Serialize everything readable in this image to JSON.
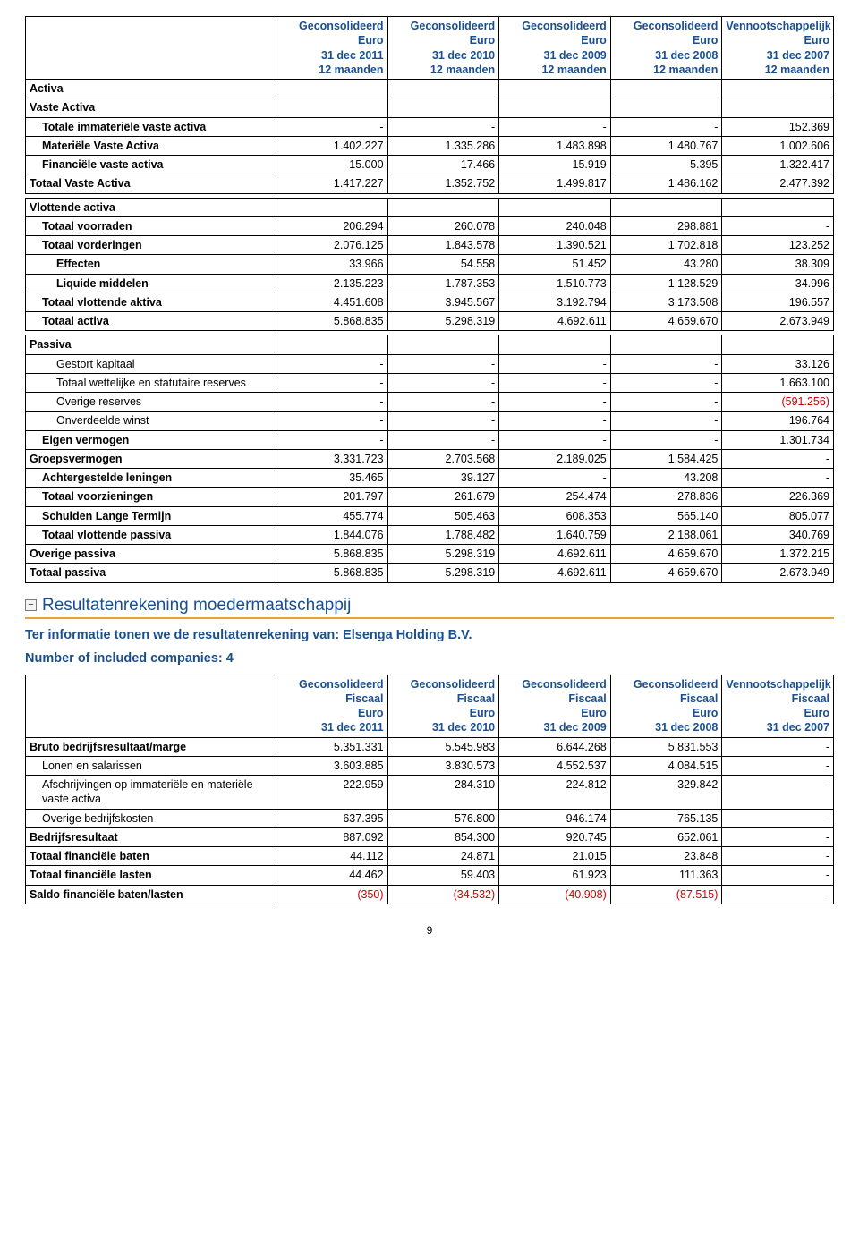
{
  "colors": {
    "heading": "#1a4f8f",
    "rule": "#f0a030",
    "negative": "#d00000",
    "border": "#000000",
    "bg": "#ffffff"
  },
  "balance": {
    "header": [
      [
        "Geconsolideerd",
        "Euro",
        "31 dec 2011",
        "12 maanden"
      ],
      [
        "Geconsolideerd",
        "Euro",
        "31 dec 2010",
        "12 maanden"
      ],
      [
        "Geconsolideerd",
        "Euro",
        "31 dec 2009",
        "12 maanden"
      ],
      [
        "Geconsolideerd",
        "Euro",
        "31 dec 2008",
        "12 maanden"
      ],
      [
        "Vennootschappelijk",
        "Euro",
        "31 dec 2007",
        "12 maanden"
      ]
    ],
    "rows": [
      {
        "label": "Activa",
        "bold": true,
        "indent": 0,
        "vals": [
          "",
          "",
          "",
          "",
          ""
        ]
      },
      {
        "label": "Vaste Activa",
        "bold": true,
        "indent": 0,
        "vals": [
          "",
          "",
          "",
          "",
          ""
        ]
      },
      {
        "label": "Totale immateriële vaste activa",
        "bold": true,
        "indent": 1,
        "vals": [
          "-",
          "-",
          "-",
          "-",
          "152.369"
        ]
      },
      {
        "label": "Materiële Vaste Activa",
        "bold": true,
        "indent": 1,
        "vals": [
          "1.402.227",
          "1.335.286",
          "1.483.898",
          "1.480.767",
          "1.002.606"
        ]
      },
      {
        "label": "Financiële vaste activa",
        "bold": true,
        "indent": 1,
        "vals": [
          "15.000",
          "17.466",
          "15.919",
          "5.395",
          "1.322.417"
        ]
      },
      {
        "label": "Totaal Vaste Activa",
        "bold": true,
        "indent": 0,
        "vals": [
          "1.417.227",
          "1.352.752",
          "1.499.817",
          "1.486.162",
          "2.477.392"
        ]
      },
      {
        "spacer": true
      },
      {
        "label": "Vlottende activa",
        "bold": true,
        "indent": 0,
        "vals": [
          "",
          "",
          "",
          "",
          ""
        ]
      },
      {
        "label": "Totaal voorraden",
        "bold": true,
        "indent": 1,
        "vals": [
          "206.294",
          "260.078",
          "240.048",
          "298.881",
          "-"
        ]
      },
      {
        "label": "Totaal vorderingen",
        "bold": true,
        "indent": 1,
        "vals": [
          "2.076.125",
          "1.843.578",
          "1.390.521",
          "1.702.818",
          "123.252"
        ]
      },
      {
        "label": "Effecten",
        "bold": true,
        "indent": 2,
        "vals": [
          "33.966",
          "54.558",
          "51.452",
          "43.280",
          "38.309"
        ]
      },
      {
        "label": "Liquide middelen",
        "bold": true,
        "indent": 2,
        "vals": [
          "2.135.223",
          "1.787.353",
          "1.510.773",
          "1.128.529",
          "34.996"
        ]
      },
      {
        "label": "Totaal vlottende aktiva",
        "bold": true,
        "indent": 1,
        "vals": [
          "4.451.608",
          "3.945.567",
          "3.192.794",
          "3.173.508",
          "196.557"
        ]
      },
      {
        "label": "Totaal activa",
        "bold": true,
        "indent": 1,
        "vals": [
          "5.868.835",
          "5.298.319",
          "4.692.611",
          "4.659.670",
          "2.673.949"
        ]
      },
      {
        "spacer": true
      },
      {
        "label": "Passiva",
        "bold": true,
        "indent": 0,
        "vals": [
          "",
          "",
          "",
          "",
          ""
        ]
      },
      {
        "label": "Gestort kapitaal",
        "bold": false,
        "indent": 2,
        "vals": [
          "-",
          "-",
          "-",
          "-",
          "33.126"
        ]
      },
      {
        "label": "Totaal wettelijke en statutaire reserves",
        "bold": false,
        "indent": 2,
        "vals": [
          "-",
          "-",
          "-",
          "-",
          "1.663.100"
        ]
      },
      {
        "label": "Overige reserves",
        "bold": false,
        "indent": 2,
        "vals": [
          "-",
          "-",
          "-",
          "-",
          "(591.256)"
        ],
        "neg": [
          false,
          false,
          false,
          false,
          true
        ]
      },
      {
        "label": "Onverdeelde winst",
        "bold": false,
        "indent": 2,
        "vals": [
          "-",
          "-",
          "-",
          "-",
          "196.764"
        ]
      },
      {
        "label": "Eigen vermogen",
        "bold": true,
        "indent": 1,
        "vals": [
          "-",
          "-",
          "-",
          "-",
          "1.301.734"
        ]
      },
      {
        "label": "Groepsvermogen",
        "bold": true,
        "indent": 0,
        "vals": [
          "3.331.723",
          "2.703.568",
          "2.189.025",
          "1.584.425",
          "-"
        ]
      },
      {
        "label": "Achtergestelde leningen",
        "bold": true,
        "indent": 1,
        "vals": [
          "35.465",
          "39.127",
          "-",
          "43.208",
          "-"
        ]
      },
      {
        "label": "Totaal voorzieningen",
        "bold": true,
        "indent": 1,
        "vals": [
          "201.797",
          "261.679",
          "254.474",
          "278.836",
          "226.369"
        ]
      },
      {
        "label": "Schulden Lange Termijn",
        "bold": true,
        "indent": 1,
        "vals": [
          "455.774",
          "505.463",
          "608.353",
          "565.140",
          "805.077"
        ]
      },
      {
        "label": "Totaal vlottende passiva",
        "bold": true,
        "indent": 1,
        "vals": [
          "1.844.076",
          "1.788.482",
          "1.640.759",
          "2.188.061",
          "340.769"
        ]
      },
      {
        "label": "Overige passiva",
        "bold": true,
        "indent": 0,
        "vals": [
          "5.868.835",
          "5.298.319",
          "4.692.611",
          "4.659.670",
          "1.372.215"
        ]
      },
      {
        "label": "Totaal passiva",
        "bold": true,
        "indent": 0,
        "vals": [
          "5.868.835",
          "5.298.319",
          "4.692.611",
          "4.659.670",
          "2.673.949"
        ]
      }
    ]
  },
  "section2": {
    "title": "Resultatenrekening moedermaatschappij",
    "line1": "Ter informatie tonen we de resultatenrekening van: Elsenga Holding B.V.",
    "line2": "Number of included companies: 4"
  },
  "income": {
    "header": [
      [
        "Geconsolideerd",
        "Fiscaal",
        "Euro",
        "31 dec 2011"
      ],
      [
        "Geconsolideerd",
        "Fiscaal",
        "Euro",
        "31 dec 2010"
      ],
      [
        "Geconsolideerd",
        "Fiscaal",
        "Euro",
        "31 dec 2009"
      ],
      [
        "Geconsolideerd",
        "Fiscaal",
        "Euro",
        "31 dec 2008"
      ],
      [
        "Vennootschappelijk",
        "Fiscaal",
        "Euro",
        "31 dec 2007"
      ]
    ],
    "rows": [
      {
        "label": "Bruto bedrijfsresultaat/marge",
        "bold": true,
        "indent": 0,
        "vals": [
          "5.351.331",
          "5.545.983",
          "6.644.268",
          "5.831.553",
          "-"
        ]
      },
      {
        "label": "Lonen en salarissen",
        "bold": false,
        "indent": 1,
        "vals": [
          "3.603.885",
          "3.830.573",
          "4.552.537",
          "4.084.515",
          "-"
        ]
      },
      {
        "label": "Afschrijvingen op immateriële en materiële vaste activa",
        "bold": false,
        "indent": 1,
        "vals": [
          "222.959",
          "284.310",
          "224.812",
          "329.842",
          "-"
        ]
      },
      {
        "label": "Overige bedrijfskosten",
        "bold": false,
        "indent": 1,
        "vals": [
          "637.395",
          "576.800",
          "946.174",
          "765.135",
          "-"
        ]
      },
      {
        "label": "Bedrijfsresultaat",
        "bold": true,
        "indent": 0,
        "vals": [
          "887.092",
          "854.300",
          "920.745",
          "652.061",
          "-"
        ]
      },
      {
        "label": "Totaal financiële baten",
        "bold": true,
        "indent": 0,
        "vals": [
          "44.112",
          "24.871",
          "21.015",
          "23.848",
          "-"
        ]
      },
      {
        "label": "Totaal financiële lasten",
        "bold": true,
        "indent": 0,
        "vals": [
          "44.462",
          "59.403",
          "61.923",
          "111.363",
          "-"
        ]
      },
      {
        "label": "Saldo financiële baten/lasten",
        "bold": true,
        "indent": 0,
        "vals": [
          "(350)",
          "(34.532)",
          "(40.908)",
          "(87.515)",
          "-"
        ],
        "neg": [
          true,
          true,
          true,
          true,
          false
        ]
      }
    ]
  },
  "pagenum": "9"
}
